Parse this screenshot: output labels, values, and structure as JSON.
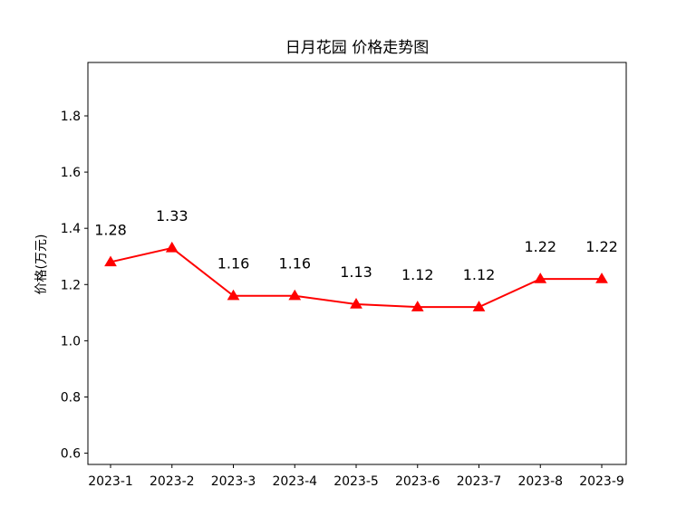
{
  "chart_data": {
    "type": "line",
    "title": "日月花园 价格走势图",
    "xlabel": "",
    "ylabel": "价格(万元)",
    "categories": [
      "2023-1",
      "2023-2",
      "2023-3",
      "2023-4",
      "2023-5",
      "2023-6",
      "2023-7",
      "2023-8",
      "2023-9"
    ],
    "series": [
      {
        "values": [
          1.28,
          1.33,
          1.16,
          1.16,
          1.13,
          1.12,
          1.12,
          1.22,
          1.22
        ],
        "color": "#ff0000",
        "marker": "triangle-up"
      }
    ],
    "data_labels": [
      "1.28",
      "1.33",
      "1.16",
      "1.16",
      "1.13",
      "1.12",
      "1.12",
      "1.22",
      "1.22"
    ],
    "ylim": [
      0.56,
      1.99
    ],
    "yticks": [
      0.6,
      0.8,
      1.0,
      1.2,
      1.4,
      1.6,
      1.8
    ],
    "ytick_labels": [
      "0.6",
      "0.8",
      "1.0",
      "1.2",
      "1.4",
      "1.6",
      "1.8"
    ],
    "grid": false,
    "legend": "none"
  }
}
